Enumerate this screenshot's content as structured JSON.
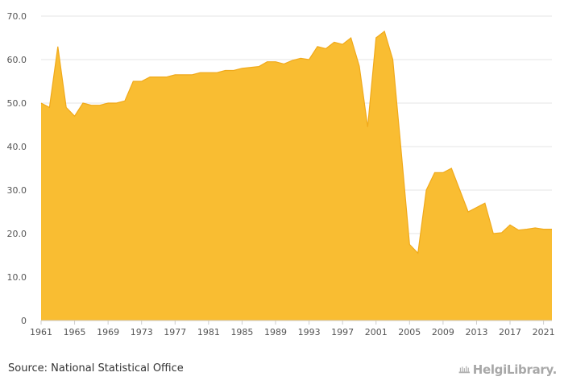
{
  "chart_data": {
    "type": "area",
    "x": [
      1961,
      1962,
      1963,
      1964,
      1965,
      1966,
      1967,
      1968,
      1969,
      1970,
      1971,
      1972,
      1973,
      1974,
      1975,
      1976,
      1977,
      1978,
      1979,
      1980,
      1981,
      1982,
      1983,
      1984,
      1985,
      1986,
      1987,
      1988,
      1989,
      1990,
      1991,
      1992,
      1993,
      1994,
      1995,
      1996,
      1997,
      1998,
      1999,
      2000,
      2001,
      2002,
      2003,
      2004,
      2005,
      2006,
      2007,
      2008,
      2009,
      2010,
      2011,
      2012,
      2013,
      2014,
      2015,
      2016,
      2017,
      2018,
      2019,
      2020,
      2021,
      2022
    ],
    "values": [
      50.0,
      49.0,
      63.0,
      49.0,
      47.0,
      50.0,
      49.5,
      49.5,
      50.0,
      50.0,
      50.5,
      55.0,
      55.0,
      56.0,
      56.0,
      56.0,
      56.5,
      56.5,
      56.5,
      57.0,
      57.0,
      57.0,
      57.5,
      57.5,
      58.0,
      58.2,
      58.4,
      59.5,
      59.5,
      59.0,
      59.8,
      60.3,
      60.0,
      63.0,
      62.5,
      64.0,
      63.5,
      65.0,
      58.5,
      44.5,
      65.0,
      66.5,
      60.0,
      39.0,
      17.5,
      15.5,
      30.0,
      34.0,
      34.0,
      35.0,
      30.0,
      25.0,
      26.0,
      27.0,
      20.0,
      20.2,
      22.0,
      20.8,
      21.0,
      21.3,
      21.0,
      21.0
    ],
    "x_ticks": [
      "1961",
      "1965",
      "1969",
      "1973",
      "1977",
      "1981",
      "1985",
      "1989",
      "1993",
      "1997",
      "2001",
      "2005",
      "2009",
      "2013",
      "2017",
      "2021"
    ],
    "y_ticks": [
      "0",
      "10.0",
      "20.0",
      "30.0",
      "40.0",
      "50.0",
      "60.0",
      "70.0"
    ],
    "ylim": [
      0,
      70
    ],
    "xlim": [
      1961,
      2022
    ],
    "grid": "horizontal",
    "fill_color": "#f9bd32",
    "stroke_color": "#f0a91a"
  },
  "footer": {
    "source": "Source: National Statistical Office",
    "brand": "HelgiLibrary."
  },
  "colors": {
    "grid": "#e6e6e6",
    "axis": "#cccccc",
    "logo": "#b0b0b0"
  }
}
